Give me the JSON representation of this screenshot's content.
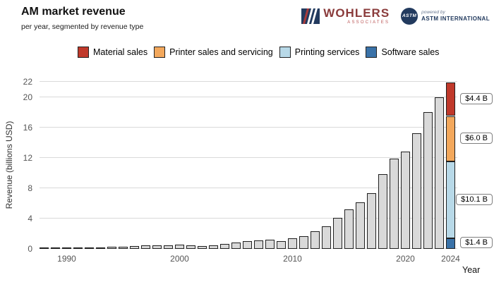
{
  "header": {
    "title": "AM market revenue",
    "subtitle": "per year, segmented by revenue type"
  },
  "branding": {
    "wohlers": {
      "name": "WOHLERS",
      "subtext": "ASSOCIATES"
    },
    "astm": {
      "seal_text": "ASTM",
      "powered_by": "powered by",
      "name": "ASTM INTERNATIONAL"
    }
  },
  "legend": [
    {
      "label": "Material sales",
      "color": "#c0392b"
    },
    {
      "label": "Printer sales and servicing",
      "color": "#f3a85c"
    },
    {
      "label": "Printing services",
      "color": "#b8d9e8"
    },
    {
      "label": "Software sales",
      "color": "#3a72a8"
    }
  ],
  "chart_data": {
    "type": "bar",
    "title": "AM market revenue",
    "subtitle": "per year, segmented by revenue type",
    "xlabel": "Year",
    "ylabel": "Revenue (billions USD)",
    "ylim": [
      0,
      22
    ],
    "yticks": [
      0,
      4,
      8,
      12,
      16,
      20,
      22
    ],
    "xticks": [
      1990,
      2000,
      2010,
      2020,
      2024
    ],
    "grid": "horizontal",
    "bar_fill": "#d9d9d9",
    "bar_stroke": "#1f1f1f",
    "years": [
      1988,
      1989,
      1990,
      1991,
      1992,
      1993,
      1994,
      1995,
      1996,
      1997,
      1998,
      1999,
      2000,
      2001,
      2002,
      2003,
      2004,
      2005,
      2006,
      2007,
      2008,
      2009,
      2010,
      2011,
      2012,
      2013,
      2014,
      2015,
      2016,
      2017,
      2018,
      2019,
      2020,
      2021,
      2022,
      2023
    ],
    "values": [
      0.05,
      0.1,
      0.15,
      0.15,
      0.15,
      0.2,
      0.25,
      0.3,
      0.4,
      0.45,
      0.45,
      0.45,
      0.6,
      0.5,
      0.4,
      0.45,
      0.65,
      0.8,
      1.0,
      1.15,
      1.2,
      1.05,
      1.35,
      1.7,
      2.3,
      3.0,
      4.1,
      5.2,
      6.1,
      7.3,
      9.8,
      11.9,
      12.8,
      15.2,
      18.0,
      20.0
    ],
    "stacked_year": 2024,
    "stacked_total": 21.9,
    "stacked_segments": [
      {
        "name": "Software sales",
        "value": 1.4,
        "color": "#3a72a8",
        "label": "$1.4 B"
      },
      {
        "name": "Printing services",
        "value": 10.1,
        "color": "#b8d9e8",
        "label": "$10.1 B"
      },
      {
        "name": "Printer sales and servicing",
        "value": 6.0,
        "color": "#f3a85c",
        "label": "$6.0 B"
      },
      {
        "name": "Material sales",
        "value": 4.4,
        "color": "#c0392b",
        "label": "$4.4 B"
      }
    ]
  }
}
